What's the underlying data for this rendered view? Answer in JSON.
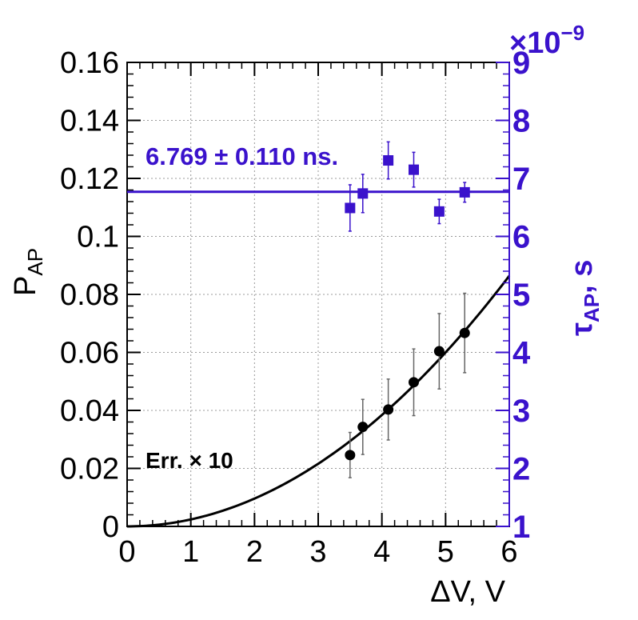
{
  "colors": {
    "primary": "#000000",
    "secondary": "#3a12cc",
    "grid": "#9a9a9a"
  },
  "chart_data": {
    "type": "scatter",
    "title": "",
    "grid": true,
    "xlabel": "ΔV, V",
    "xlim": [
      0,
      6
    ],
    "x_ticks": [
      "0",
      "1",
      "2",
      "3",
      "4",
      "5",
      "6"
    ],
    "ylabel_left": {
      "main": "P",
      "sub": "AP"
    },
    "ylim_left": [
      0,
      0.16
    ],
    "y_ticks_left": [
      "0",
      "0.02",
      "0.04",
      "0.06",
      "0.08",
      "0.1",
      "0.12",
      "0.14",
      "0.16"
    ],
    "ylabel_right": {
      "main": "τ",
      "sub": "AP",
      "rest": ", s"
    },
    "ylim_right": [
      1,
      9
    ],
    "y_ticks_right": [
      "1",
      "2",
      "3",
      "4",
      "5",
      "6",
      "7",
      "8",
      "9"
    ],
    "right_axis_exponent": {
      "base": "×10",
      "exp": "−9"
    },
    "series": [
      {
        "axis": "left",
        "marker": "circle",
        "x": [
          3.5,
          3.7,
          4.1,
          4.5,
          4.9,
          5.3
        ],
        "y": [
          0.0246,
          0.0343,
          0.0403,
          0.0497,
          0.0604,
          0.0667
        ],
        "yerr": [
          0.0078,
          0.0095,
          0.0105,
          0.0115,
          0.013,
          0.0137
        ]
      },
      {
        "axis": "right",
        "marker": "square",
        "x": [
          3.5,
          3.7,
          4.1,
          4.5,
          4.9,
          5.3
        ],
        "y": [
          6.49,
          6.74,
          7.31,
          7.15,
          6.43,
          6.76
        ],
        "yerr": [
          0.4,
          0.33,
          0.32,
          0.3,
          0.21,
          0.17
        ]
      }
    ],
    "fit_left": {
      "type": "quadratic",
      "coefficient": 0.0024,
      "x_range": [
        0,
        6
      ]
    },
    "fit_right": {
      "type": "constant",
      "value": 6.769,
      "x_range": [
        0,
        6
      ]
    },
    "annotations": [
      {
        "text": "6.769 ± 0.110 ns."
      },
      {
        "text": "Err. × 10"
      }
    ]
  }
}
